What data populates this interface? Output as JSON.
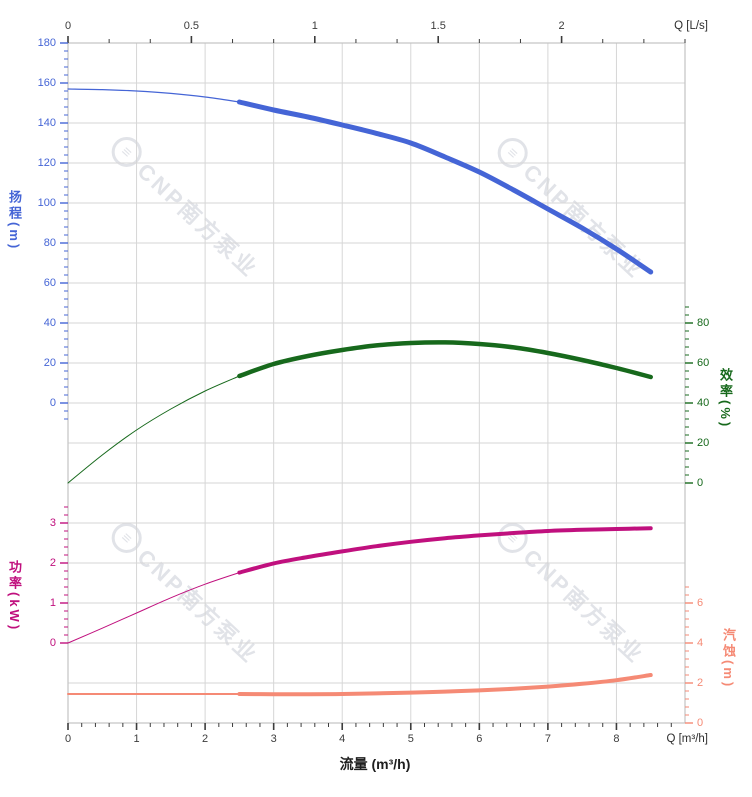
{
  "chart_data": {
    "type": "line",
    "title": "",
    "x_axis_bottom": {
      "title": "流量 (m³/h)",
      "corner_label": "Q [m³/h]",
      "range": [
        0,
        9
      ],
      "major_ticks": [
        0,
        1,
        2,
        3,
        4,
        5,
        6,
        7,
        8
      ],
      "minor_step": 0.2,
      "minor_range": [
        0,
        8.8
      ],
      "color": "#3c3c3c"
    },
    "x_axis_top": {
      "corner_label": "Q [L/s]",
      "range": [
        0,
        2.5
      ],
      "major_ticks": [
        0,
        0.5,
        1,
        1.5,
        2
      ],
      "minor_step": 0.166667,
      "minor_range": [
        0,
        2.5
      ],
      "color": "#3c3c3c"
    },
    "y_axes": [
      {
        "id": "head",
        "title": "扬程(m)",
        "side": "left",
        "color": "#4565d6",
        "major_ticks": [
          180,
          160,
          140,
          120,
          100,
          80,
          60,
          40,
          20,
          0
        ],
        "minor_step": 4,
        "minor_range": [
          -8,
          180
        ]
      },
      {
        "id": "efficiency",
        "title": "效率(%)",
        "side": "right",
        "color": "#17691c",
        "major_ticks": [
          80,
          60,
          40,
          20,
          0
        ],
        "minor_step": 4,
        "minor_range": [
          0,
          88
        ]
      },
      {
        "id": "power",
        "title": "功率(kW)",
        "side": "left",
        "color": "#c0107e",
        "major_ticks": [
          3,
          2,
          1,
          0
        ],
        "minor_step": 0.2,
        "minor_range": [
          0,
          3.4
        ]
      },
      {
        "id": "npsh",
        "title": "汽蚀(m)",
        "side": "right",
        "color": "#f58a75",
        "major_ticks": [
          6,
          4,
          2,
          0
        ],
        "minor_step": 0.4,
        "minor_range": [
          0,
          6.8
        ]
      }
    ],
    "series": [
      {
        "name": "head-curve",
        "axis": "head",
        "color": "#4565d6",
        "thin_width": 1.2,
        "thick_width": 5,
        "thin_until": 2.5,
        "points": [
          [
            0,
            157
          ],
          [
            0.5,
            156.7
          ],
          [
            1,
            156
          ],
          [
            1.5,
            154.8
          ],
          [
            2,
            153
          ],
          [
            2.5,
            150.5
          ],
          [
            3,
            146.5
          ],
          [
            3.5,
            143
          ],
          [
            4,
            139
          ],
          [
            4.5,
            134.8
          ],
          [
            5,
            130
          ],
          [
            5.5,
            123
          ],
          [
            6,
            115.5
          ],
          [
            6.5,
            106.5
          ],
          [
            7,
            97
          ],
          [
            7.5,
            87.5
          ],
          [
            8,
            77
          ],
          [
            8.5,
            65.5
          ]
        ]
      },
      {
        "name": "efficiency-curve",
        "axis": "efficiency",
        "color": "#17691c",
        "thin_width": 1,
        "thick_width": 4.5,
        "thin_until": 2.5,
        "points": [
          [
            0,
            0
          ],
          [
            0.5,
            14
          ],
          [
            1,
            26.5
          ],
          [
            1.5,
            37
          ],
          [
            2,
            46
          ],
          [
            2.5,
            53.5
          ],
          [
            3,
            59.5
          ],
          [
            3.5,
            63.5
          ],
          [
            4,
            66.5
          ],
          [
            4.5,
            68.8
          ],
          [
            5,
            70
          ],
          [
            5.5,
            70.3
          ],
          [
            6,
            69.5
          ],
          [
            6.5,
            67.8
          ],
          [
            7,
            65
          ],
          [
            7.5,
            61.5
          ],
          [
            8,
            57.5
          ],
          [
            8.5,
            53
          ]
        ]
      },
      {
        "name": "power-curve",
        "axis": "power",
        "color": "#c0107e",
        "thin_width": 1,
        "thick_width": 4,
        "thin_until": 2.5,
        "points": [
          [
            0,
            0
          ],
          [
            0.5,
            0.37
          ],
          [
            1,
            0.75
          ],
          [
            1.5,
            1.13
          ],
          [
            2,
            1.47
          ],
          [
            2.5,
            1.76
          ],
          [
            3,
            1.99
          ],
          [
            3.5,
            2.15
          ],
          [
            4,
            2.29
          ],
          [
            4.5,
            2.42
          ],
          [
            5,
            2.53
          ],
          [
            5.5,
            2.62
          ],
          [
            6,
            2.69
          ],
          [
            6.5,
            2.75
          ],
          [
            7,
            2.8
          ],
          [
            7.5,
            2.83
          ],
          [
            8,
            2.85
          ],
          [
            8.5,
            2.87
          ]
        ]
      },
      {
        "name": "npsh-curve",
        "axis": "npsh",
        "color": "#f58a75",
        "thin_width": 2,
        "thick_width": 4,
        "thin_until": 2.5,
        "points": [
          [
            0,
            1.45
          ],
          [
            1,
            1.45
          ],
          [
            2,
            1.45
          ],
          [
            2.5,
            1.45
          ],
          [
            3,
            1.44
          ],
          [
            3.5,
            1.44
          ],
          [
            4,
            1.45
          ],
          [
            4.5,
            1.48
          ],
          [
            5,
            1.52
          ],
          [
            5.5,
            1.57
          ],
          [
            6,
            1.63
          ],
          [
            6.5,
            1.71
          ],
          [
            7,
            1.82
          ],
          [
            7.5,
            1.96
          ],
          [
            8,
            2.14
          ],
          [
            8.5,
            2.4
          ]
        ]
      }
    ],
    "grid": {
      "color": "#d6d6d6",
      "spine_color": "#c3c3c3"
    }
  },
  "watermark": {
    "logo_glyph": "≡",
    "text": "CNP南方泵业",
    "color": "#e1e3e8"
  }
}
